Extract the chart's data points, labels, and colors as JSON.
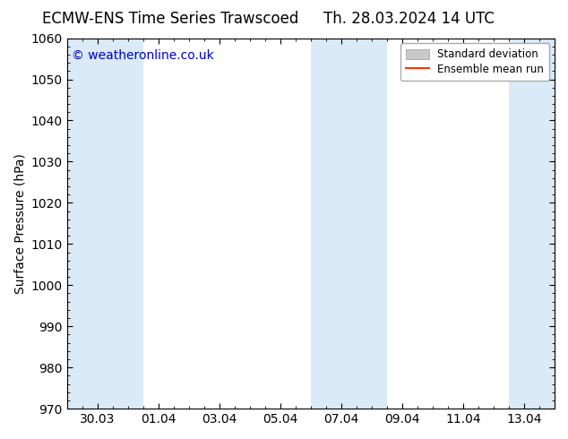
{
  "title_left": "ECMW-ENS Time Series Trawscoed",
  "title_right": "Th. 28.03.2024 14 UTC",
  "ylabel": "Surface Pressure (hPa)",
  "ylim": [
    970,
    1060
  ],
  "yticks": [
    970,
    980,
    990,
    1000,
    1010,
    1020,
    1030,
    1040,
    1050,
    1060
  ],
  "xtick_labels": [
    "30.03",
    "01.04",
    "03.04",
    "05.04",
    "07.04",
    "09.04",
    "11.04",
    "13.04"
  ],
  "xtick_positions": [
    1,
    3,
    5,
    7,
    9,
    11,
    13,
    15
  ],
  "xlim": [
    0,
    16
  ],
  "shaded_bands": [
    {
      "x_start": 0.0,
      "x_end": 2.5
    },
    {
      "x_start": 8.0,
      "x_end": 10.5
    },
    {
      "x_start": 14.5,
      "x_end": 16.0
    }
  ],
  "shade_color": "#daeaf7",
  "background_color": "#ffffff",
  "watermark_text": "© weatheronline.co.uk",
  "watermark_color": "#0000cc",
  "legend_std_label": "Standard deviation",
  "legend_ens_label": "Ensemble mean run",
  "legend_std_color": "#c8c8c8",
  "legend_ens_color": "#ff3300",
  "title_fontsize": 12,
  "axis_label_fontsize": 10,
  "tick_fontsize": 10,
  "watermark_fontsize": 10
}
